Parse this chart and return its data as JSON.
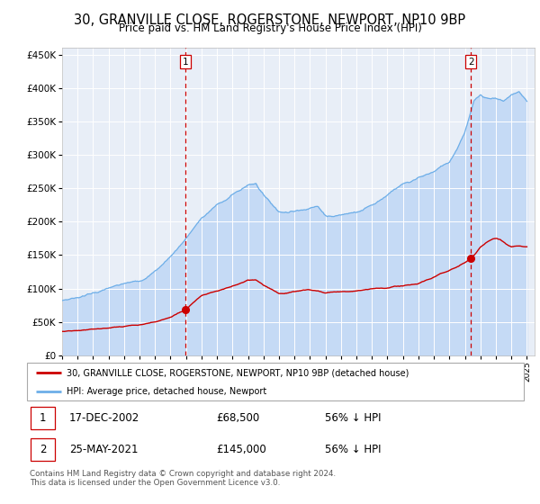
{
  "title": "30, GRANVILLE CLOSE, ROGERSTONE, NEWPORT, NP10 9BP",
  "subtitle": "Price paid vs. HM Land Registry's House Price Index (HPI)",
  "xlim_start": 1995.0,
  "xlim_end": 2025.5,
  "ylim": [
    0,
    460000
  ],
  "yticks": [
    0,
    50000,
    100000,
    150000,
    200000,
    250000,
    300000,
    350000,
    400000,
    450000
  ],
  "ytick_labels": [
    "£0",
    "£50K",
    "£100K",
    "£150K",
    "£200K",
    "£250K",
    "£300K",
    "£350K",
    "£400K",
    "£450K"
  ],
  "xtick_years": [
    1995,
    1996,
    1997,
    1998,
    1999,
    2000,
    2001,
    2002,
    2003,
    2004,
    2005,
    2006,
    2007,
    2008,
    2009,
    2010,
    2011,
    2012,
    2013,
    2014,
    2015,
    2016,
    2017,
    2018,
    2019,
    2020,
    2021,
    2022,
    2023,
    2024,
    2025
  ],
  "hpi_color": "#6daee8",
  "hpi_fill_color": "#c5daf5",
  "price_color": "#cc0000",
  "marker_color": "#cc0000",
  "vline_color": "#cc0000",
  "bg_color": "#e8eef7",
  "grid_color": "#ffffff",
  "sale1_x": 2002.96,
  "sale1_y": 68500,
  "sale2_x": 2021.39,
  "sale2_y": 145000,
  "legend_label1": "30, GRANVILLE CLOSE, ROGERSTONE, NEWPORT, NP10 9BP (detached house)",
  "legend_label2": "HPI: Average price, detached house, Newport",
  "table_rows": [
    {
      "num": "1",
      "date": "17-DEC-2002",
      "price": "£68,500",
      "pct": "56% ↓ HPI"
    },
    {
      "num": "2",
      "date": "25-MAY-2021",
      "price": "£145,000",
      "pct": "56% ↓ HPI"
    }
  ],
  "footnote": "Contains HM Land Registry data © Crown copyright and database right 2024.\nThis data is licensed under the Open Government Licence v3.0.",
  "hpi_key_years": [
    1995,
    1996,
    1997,
    1998,
    1999,
    2000,
    2001,
    2002,
    2003,
    2004,
    2005,
    2006,
    2007,
    2007.5,
    2008,
    2008.5,
    2009,
    2009.5,
    2010,
    2010.5,
    2011,
    2011.5,
    2012,
    2012.5,
    2013,
    2014,
    2015,
    2016,
    2017,
    2018,
    2019,
    2020,
    2020.5,
    2021,
    2021.3,
    2021.6,
    2022,
    2022.5,
    2023,
    2023.5,
    2024,
    2024.5,
    2025
  ],
  "hpi_key_vals": [
    82000,
    87000,
    93000,
    100000,
    107000,
    112000,
    125000,
    148000,
    175000,
    205000,
    225000,
    240000,
    255000,
    258000,
    240000,
    228000,
    215000,
    215000,
    215000,
    218000,
    222000,
    222000,
    210000,
    208000,
    210000,
    215000,
    225000,
    240000,
    255000,
    265000,
    275000,
    290000,
    310000,
    335000,
    358000,
    380000,
    390000,
    385000,
    385000,
    380000,
    390000,
    395000,
    380000
  ],
  "price_key_years": [
    1995,
    1996,
    1997,
    1998,
    1999,
    2000,
    2001,
    2002,
    2002.96,
    2003.5,
    2004,
    2005,
    2006,
    2006.5,
    2007,
    2007.5,
    2008,
    2008.5,
    2009,
    2009.5,
    2010,
    2010.5,
    2011,
    2011.5,
    2012,
    2013,
    2014,
    2015,
    2016,
    2017,
    2018,
    2019,
    2020,
    2021.0,
    2021.39,
    2021.7,
    2022,
    2022.5,
    2023,
    2023.3,
    2023.7,
    2024,
    2024.5,
    2025
  ],
  "price_key_vals": [
    35000,
    37000,
    39000,
    41000,
    44000,
    46000,
    50000,
    57000,
    68500,
    80000,
    90000,
    96000,
    103000,
    107000,
    112000,
    113000,
    105000,
    99000,
    93000,
    93000,
    95000,
    97000,
    98000,
    97000,
    94000,
    95000,
    97000,
    100000,
    101000,
    104000,
    107000,
    117000,
    127000,
    138000,
    145000,
    153000,
    162000,
    170000,
    175000,
    173000,
    165000,
    162000,
    163000,
    163000
  ]
}
